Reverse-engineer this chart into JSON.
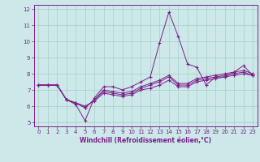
{
  "xlabel": "Windchill (Refroidissement éolien,°C)",
  "x_values": [
    0,
    1,
    2,
    3,
    4,
    5,
    6,
    7,
    8,
    9,
    10,
    11,
    12,
    13,
    14,
    15,
    16,
    17,
    18,
    19,
    20,
    21,
    22,
    23
  ],
  "series": [
    [
      7.3,
      7.3,
      7.3,
      6.4,
      6.1,
      5.1,
      6.5,
      7.2,
      7.2,
      7.0,
      7.2,
      7.5,
      7.8,
      9.9,
      11.8,
      10.3,
      8.6,
      8.4,
      7.3,
      7.8,
      7.8,
      8.1,
      8.5,
      7.9
    ],
    [
      7.3,
      7.3,
      7.3,
      6.4,
      6.2,
      6.0,
      6.3,
      6.8,
      6.7,
      6.6,
      6.7,
      7.0,
      7.1,
      7.3,
      7.6,
      7.2,
      7.2,
      7.5,
      7.6,
      7.7,
      7.8,
      7.9,
      8.0,
      7.9
    ],
    [
      7.3,
      7.3,
      7.3,
      6.4,
      6.2,
      5.9,
      6.4,
      6.9,
      6.8,
      6.7,
      6.8,
      7.1,
      7.3,
      7.5,
      7.8,
      7.3,
      7.3,
      7.6,
      7.7,
      7.8,
      7.9,
      8.0,
      8.1,
      7.9
    ],
    [
      7.3,
      7.3,
      7.3,
      6.4,
      6.2,
      5.9,
      6.4,
      7.0,
      6.9,
      6.8,
      6.9,
      7.2,
      7.4,
      7.6,
      7.9,
      7.4,
      7.4,
      7.7,
      7.8,
      7.9,
      8.0,
      8.1,
      8.2,
      8.0
    ]
  ],
  "line_color": "#7B1F8A",
  "marker": "+",
  "bg_color": "#cce8e8",
  "grid_color": "#aacccc",
  "ylim": [
    4.75,
    12.25
  ],
  "yticks": [
    5,
    6,
    7,
    8,
    9,
    10,
    11,
    12
  ],
  "xticks": [
    0,
    1,
    2,
    3,
    4,
    5,
    6,
    7,
    8,
    9,
    10,
    11,
    12,
    13,
    14,
    15,
    16,
    17,
    18,
    19,
    20,
    21,
    22,
    23
  ]
}
